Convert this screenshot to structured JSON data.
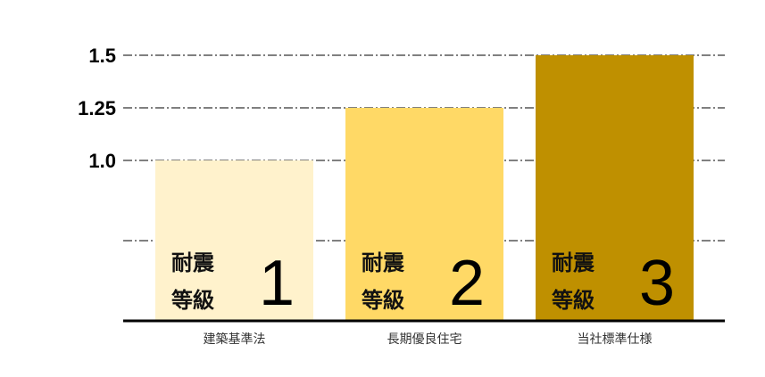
{
  "chart_data": {
    "type": "bar",
    "title": "",
    "xlabel": "",
    "ylabel": "",
    "categories": [
      "建築基準法",
      "長期優良住宅",
      "当社標準仕様"
    ],
    "values": [
      1.0,
      1.25,
      1.5
    ],
    "bar_labels": [
      {
        "line1": "耐震",
        "line2": "等級",
        "grade": "1"
      },
      {
        "line1": "耐震",
        "line2": "等級",
        "grade": "2"
      },
      {
        "line1": "耐震",
        "line2": "等級",
        "grade": "3"
      }
    ],
    "colors": [
      "#FFF2CC",
      "#FFD966",
      "#BF9000"
    ],
    "yticks": [
      {
        "value": 1.5,
        "label": "1.5"
      },
      {
        "value": 1.25,
        "label": "1.25"
      },
      {
        "value": 1.0,
        "label": "1.0"
      }
    ],
    "ylim": [
      1.0,
      1.5
    ],
    "grid": true,
    "grid_style": "dash-dot",
    "axis_break": true
  }
}
